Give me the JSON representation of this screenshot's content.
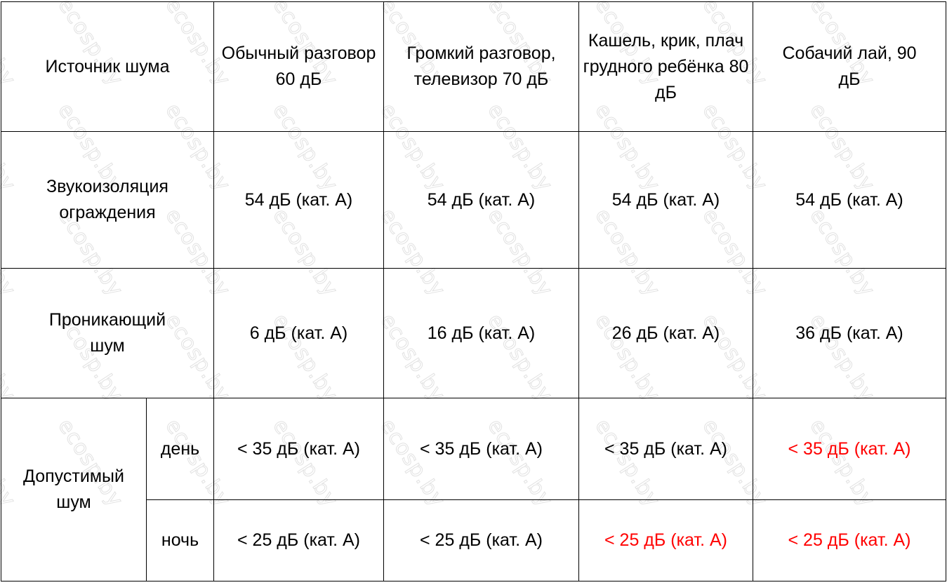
{
  "watermark": "ecosp.by",
  "colors": {
    "highlight": "#ff0000",
    "border": "#000000"
  },
  "header": {
    "source_label": "Источник шума",
    "columns": [
      "Обычный разговор 60 дБ",
      "Громкий разговор, телевизор 70 дБ",
      "Кашель, крик, плач грудного ребёнка 80 дБ",
      "Собачий лай, 90 дБ"
    ]
  },
  "rows": {
    "insulation": {
      "label": "Звукоизоляция ограждения",
      "values": [
        "54 дБ (кат. А)",
        "54 дБ (кат. А)",
        "54 дБ (кат. А)",
        "54 дБ (кат. А)"
      ]
    },
    "penetrating": {
      "label": "Проникающий шум",
      "values": [
        "6 дБ (кат. А)",
        "16 дБ (кат. А)",
        "26 дБ (кат. А)",
        "36 дБ (кат. А)"
      ]
    },
    "allowed": {
      "label": "Допустимый шум",
      "day": {
        "label": "день",
        "values": [
          "< 35 дБ (кат. А)",
          "< 35 дБ (кат. А)",
          "< 35 дБ (кат. А)",
          "< 35 дБ (кат. А)"
        ],
        "exceeded": [
          false,
          false,
          false,
          true
        ]
      },
      "night": {
        "label": "ночь",
        "values": [
          "< 25 дБ (кат. А)",
          "< 25 дБ (кат. А)",
          "< 25 дБ (кат. А)",
          "< 25 дБ (кат. А)"
        ],
        "exceeded": [
          false,
          false,
          true,
          true
        ]
      }
    }
  }
}
